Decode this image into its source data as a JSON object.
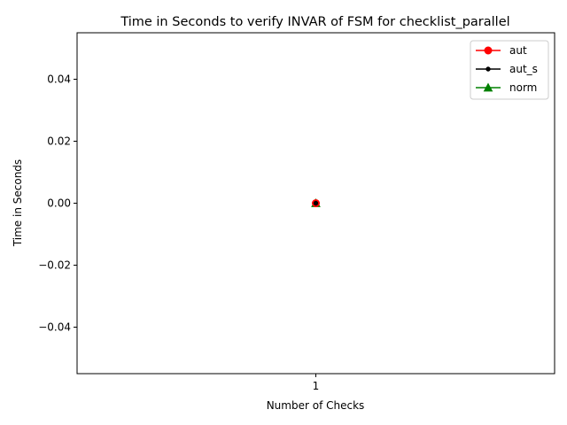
{
  "chart_data": {
    "type": "line",
    "title": "Time in Seconds to verify INVAR of FSM for checklist_parallel",
    "xlabel": "Number of Checks",
    "ylabel": "Time in Seconds",
    "categories": [
      "1"
    ],
    "x": [
      1
    ],
    "xlim": [
      0.945,
      1.055
    ],
    "ylim": [
      -0.055,
      0.055
    ],
    "xticks": [
      1
    ],
    "xtick_labels": [
      "1"
    ],
    "yticks": [
      -0.04,
      -0.02,
      0.0,
      0.02,
      0.04
    ],
    "ytick_labels": [
      "−0.04",
      "−0.02",
      "0.00",
      "0.02",
      "0.04"
    ],
    "grid": false,
    "legend_position": "top-right",
    "series": [
      {
        "name": "aut",
        "values": [
          0.0
        ],
        "color": "#ff0000",
        "marker": "circle-large"
      },
      {
        "name": "aut_s",
        "values": [
          0.0
        ],
        "color": "#000000",
        "marker": "point"
      },
      {
        "name": "norm",
        "values": [
          0.0
        ],
        "color": "#008000",
        "marker": "triangle-up"
      }
    ]
  }
}
